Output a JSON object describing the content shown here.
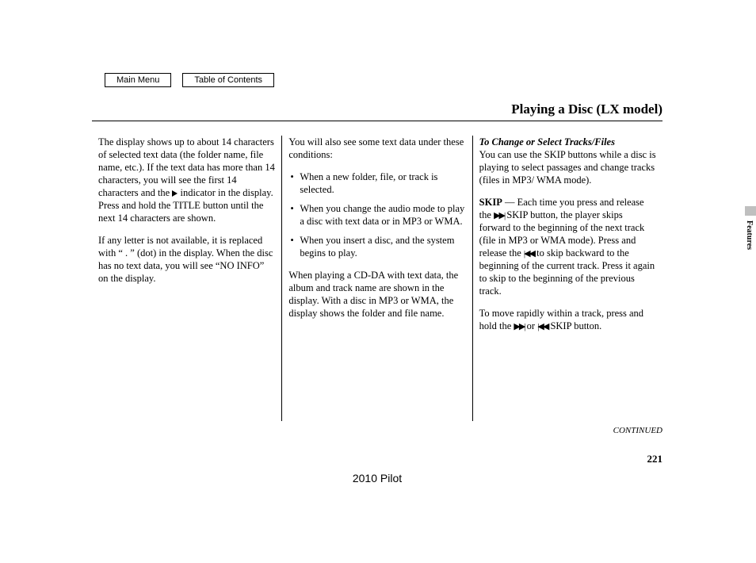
{
  "nav": {
    "main_menu": "Main Menu",
    "toc": "Table of Contents"
  },
  "title": "Playing a Disc (LX model)",
  "side_tab": "Features",
  "col1": {
    "p1": "The display shows up to about 14 characters of selected text data (the folder name, file name, etc.). If the text data has more than 14 characters, you will see the first 14 characters and the",
    "p1b": "indicator in the display. Press and hold the TITLE button until the next 14 characters are shown.",
    "p2": "If any letter is not available, it is replaced with “ . ” (dot) in the display. When the disc has no text data, you will see “NO INFO” on the display."
  },
  "col2": {
    "intro": "You will also see some text data under these conditions:",
    "b1": "When a new folder, file, or track is selected.",
    "b2": "When you change the audio mode to play a disc with text data or in MP3 or WMA.",
    "b3": "When you insert a disc, and the system begins to play.",
    "p2": "When playing a CD-DA with text data, the album and track name are shown in the display. With a disc in MP3 or WMA, the display shows the folder and file name."
  },
  "col3": {
    "subhead": "To Change or Select Tracks/Files",
    "p1": "You can use the SKIP buttons while a disc is playing to select passages and change tracks (files in MP3/ WMA mode).",
    "skip_label": "SKIP",
    "dash": " — ",
    "p2a": "Each time you press and release the",
    "p2b": "SKIP button, the player skips forward to the beginning of the next track (file in MP3 or WMA mode). Press and release the",
    "p2c": "to skip backward to the beginning of the current track. Press it again to skip to the beginning of the previous track.",
    "p3a": "To move rapidly within a track, press and hold the",
    "p3_or": "or",
    "p3b": "SKIP button."
  },
  "continued": "CONTINUED",
  "pagenum": "221",
  "model": "2010 Pilot"
}
